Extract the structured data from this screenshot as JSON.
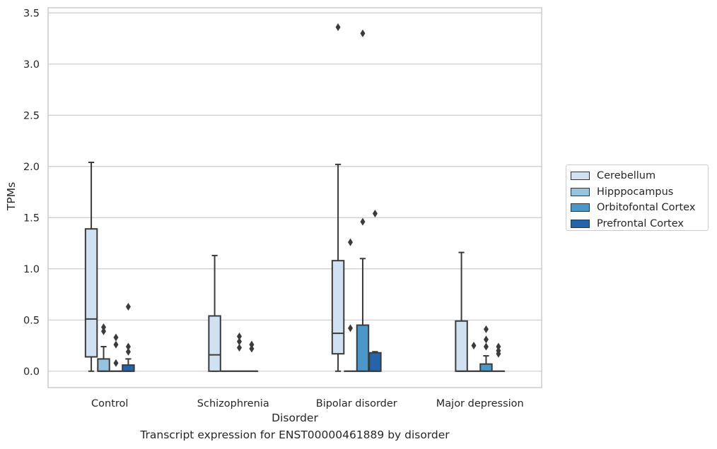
{
  "chart_data": {
    "type": "box",
    "title": "",
    "caption": "Transcript expression for ENST00000461889 by disorder",
    "xlabel": "Disorder",
    "ylabel": "TPMs",
    "ylim": [
      -0.16,
      3.55
    ],
    "yticks": [
      "0.0",
      "0.5",
      "1.0",
      "1.5",
      "2.0",
      "2.5",
      "3.0",
      "3.5"
    ],
    "categories": [
      "Control",
      "Schizophrenia",
      "Bipolar disorder",
      "Major depression"
    ],
    "grid": true,
    "legend_position": "right",
    "series": [
      {
        "name": "Cerebellum",
        "color": "#d0e1f2",
        "boxes": [
          {
            "whislo": 0.0,
            "q1": 0.14,
            "med": 0.51,
            "q3": 1.39,
            "whishi": 2.04,
            "fliers": []
          },
          {
            "whislo": 0.0,
            "q1": 0.0,
            "med": 0.16,
            "q3": 0.54,
            "whishi": 1.13,
            "fliers": []
          },
          {
            "whislo": 0.0,
            "q1": 0.17,
            "med": 0.37,
            "q3": 1.08,
            "whishi": 2.02,
            "fliers": [
              3.36
            ]
          },
          {
            "whislo": 0.0,
            "q1": 0.0,
            "med": 0.0,
            "q3": 0.49,
            "whishi": 1.16,
            "fliers": []
          }
        ]
      },
      {
        "name": "Hipppocampus",
        "color": "#94c4df",
        "boxes": [
          {
            "whislo": 0.0,
            "q1": 0.0,
            "med": 0.0,
            "q3": 0.12,
            "whishi": 0.24,
            "fliers": [
              0.39,
              0.43
            ]
          },
          {
            "whislo": 0.0,
            "q1": 0.0,
            "med": 0.0,
            "q3": 0.0,
            "whishi": 0.0,
            "fliers": []
          },
          {
            "whislo": 0.0,
            "q1": 0.0,
            "med": 0.0,
            "q3": 0.0,
            "whishi": 0.0,
            "fliers": [
              0.42,
              1.26
            ]
          },
          {
            "whislo": 0.0,
            "q1": 0.0,
            "med": 0.0,
            "q3": 0.0,
            "whishi": 0.0,
            "fliers": [
              0.25
            ]
          }
        ]
      },
      {
        "name": "Orbitofontal Cortex",
        "color": "#4a98c9",
        "boxes": [
          {
            "whislo": 0.0,
            "q1": 0.0,
            "med": 0.0,
            "q3": 0.0,
            "whishi": 0.0,
            "fliers": [
              0.08,
              0.26,
              0.33
            ]
          },
          {
            "whislo": 0.0,
            "q1": 0.0,
            "med": 0.0,
            "q3": 0.0,
            "whishi": 0.0,
            "fliers": [
              0.23,
              0.29,
              0.34
            ]
          },
          {
            "whislo": 0.0,
            "q1": 0.0,
            "med": 0.0,
            "q3": 0.45,
            "whishi": 1.1,
            "fliers": [
              1.46,
              3.3
            ]
          },
          {
            "whislo": 0.0,
            "q1": 0.0,
            "med": 0.0,
            "q3": 0.07,
            "whishi": 0.15,
            "fliers": [
              0.24,
              0.31,
              0.41
            ]
          }
        ]
      },
      {
        "name": "Prefrontal Cortex",
        "color": "#2464ab",
        "boxes": [
          {
            "whislo": 0.0,
            "q1": 0.0,
            "med": 0.0,
            "q3": 0.06,
            "whishi": 0.12,
            "fliers": [
              0.19,
              0.24,
              0.63
            ]
          },
          {
            "whislo": 0.0,
            "q1": 0.0,
            "med": 0.0,
            "q3": 0.0,
            "whishi": 0.0,
            "fliers": [
              0.22,
              0.26
            ]
          },
          {
            "whislo": 0.0,
            "q1": 0.0,
            "med": 0.0,
            "q3": 0.18,
            "whishi": 0.19,
            "fliers": [
              1.54
            ]
          },
          {
            "whislo": 0.0,
            "q1": 0.0,
            "med": 0.0,
            "q3": 0.0,
            "whishi": 0.0,
            "fliers": [
              0.17,
              0.2,
              0.24
            ]
          }
        ]
      }
    ]
  }
}
